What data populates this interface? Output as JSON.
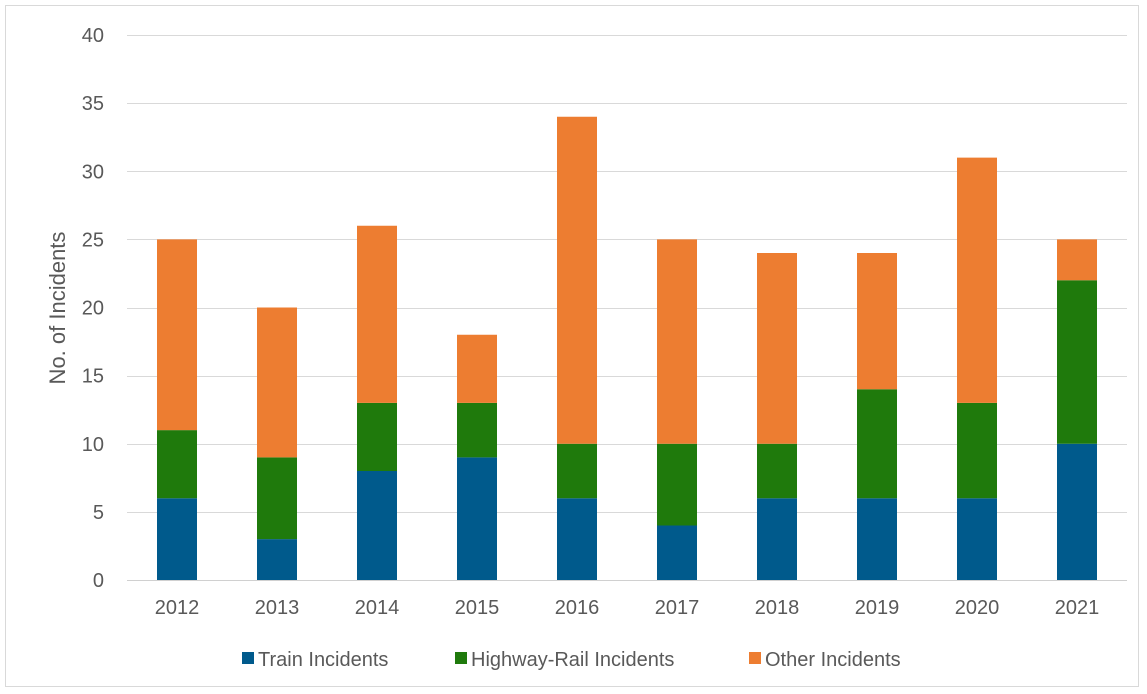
{
  "chart_data": {
    "type": "bar",
    "stacked": true,
    "title": "",
    "xlabel": "",
    "ylabel": "No. of Incidents",
    "ylim": [
      0,
      40
    ],
    "yticks": [
      0,
      5,
      10,
      15,
      20,
      25,
      30,
      35,
      40
    ],
    "grid": true,
    "legend_position": "bottom",
    "categories": [
      "2012",
      "2013",
      "2014",
      "2015",
      "2016",
      "2017",
      "2018",
      "2019",
      "2020",
      "2021"
    ],
    "series": [
      {
        "name": "Train Incidents",
        "color": "#005a8c",
        "values": [
          6,
          3,
          8,
          9,
          6,
          4,
          6,
          6,
          6,
          10
        ]
      },
      {
        "name": "Highway-Rail Incidents",
        "color": "#1f7a0c",
        "values": [
          5,
          6,
          5,
          4,
          4,
          6,
          4,
          8,
          7,
          12
        ]
      },
      {
        "name": "Other Incidents",
        "color": "#ed7d31",
        "values": [
          14,
          11,
          13,
          5,
          24,
          15,
          14,
          10,
          18,
          3
        ]
      }
    ]
  }
}
